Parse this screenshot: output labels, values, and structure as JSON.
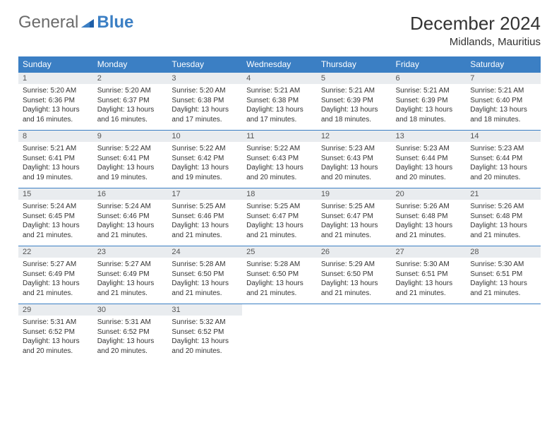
{
  "brand": {
    "part1": "General",
    "part2": "Blue"
  },
  "title": "December 2024",
  "location": "Midlands, Mauritius",
  "colors": {
    "header_bg": "#3b7fc4",
    "daynum_bg": "#e9ecef",
    "border": "#3b7fc4",
    "text": "#333333",
    "brand_gray": "#6b6b6b",
    "brand_blue": "#3b7fc4"
  },
  "day_headers": [
    "Sunday",
    "Monday",
    "Tuesday",
    "Wednesday",
    "Thursday",
    "Friday",
    "Saturday"
  ],
  "days": [
    {
      "n": 1,
      "sr": "5:20 AM",
      "ss": "6:36 PM",
      "dl": "13 hours and 16 minutes."
    },
    {
      "n": 2,
      "sr": "5:20 AM",
      "ss": "6:37 PM",
      "dl": "13 hours and 16 minutes."
    },
    {
      "n": 3,
      "sr": "5:20 AM",
      "ss": "6:38 PM",
      "dl": "13 hours and 17 minutes."
    },
    {
      "n": 4,
      "sr": "5:21 AM",
      "ss": "6:38 PM",
      "dl": "13 hours and 17 minutes."
    },
    {
      "n": 5,
      "sr": "5:21 AM",
      "ss": "6:39 PM",
      "dl": "13 hours and 18 minutes."
    },
    {
      "n": 6,
      "sr": "5:21 AM",
      "ss": "6:39 PM",
      "dl": "13 hours and 18 minutes."
    },
    {
      "n": 7,
      "sr": "5:21 AM",
      "ss": "6:40 PM",
      "dl": "13 hours and 18 minutes."
    },
    {
      "n": 8,
      "sr": "5:21 AM",
      "ss": "6:41 PM",
      "dl": "13 hours and 19 minutes."
    },
    {
      "n": 9,
      "sr": "5:22 AM",
      "ss": "6:41 PM",
      "dl": "13 hours and 19 minutes."
    },
    {
      "n": 10,
      "sr": "5:22 AM",
      "ss": "6:42 PM",
      "dl": "13 hours and 19 minutes."
    },
    {
      "n": 11,
      "sr": "5:22 AM",
      "ss": "6:43 PM",
      "dl": "13 hours and 20 minutes."
    },
    {
      "n": 12,
      "sr": "5:23 AM",
      "ss": "6:43 PM",
      "dl": "13 hours and 20 minutes."
    },
    {
      "n": 13,
      "sr": "5:23 AM",
      "ss": "6:44 PM",
      "dl": "13 hours and 20 minutes."
    },
    {
      "n": 14,
      "sr": "5:23 AM",
      "ss": "6:44 PM",
      "dl": "13 hours and 20 minutes."
    },
    {
      "n": 15,
      "sr": "5:24 AM",
      "ss": "6:45 PM",
      "dl": "13 hours and 21 minutes."
    },
    {
      "n": 16,
      "sr": "5:24 AM",
      "ss": "6:46 PM",
      "dl": "13 hours and 21 minutes."
    },
    {
      "n": 17,
      "sr": "5:25 AM",
      "ss": "6:46 PM",
      "dl": "13 hours and 21 minutes."
    },
    {
      "n": 18,
      "sr": "5:25 AM",
      "ss": "6:47 PM",
      "dl": "13 hours and 21 minutes."
    },
    {
      "n": 19,
      "sr": "5:25 AM",
      "ss": "6:47 PM",
      "dl": "13 hours and 21 minutes."
    },
    {
      "n": 20,
      "sr": "5:26 AM",
      "ss": "6:48 PM",
      "dl": "13 hours and 21 minutes."
    },
    {
      "n": 21,
      "sr": "5:26 AM",
      "ss": "6:48 PM",
      "dl": "13 hours and 21 minutes."
    },
    {
      "n": 22,
      "sr": "5:27 AM",
      "ss": "6:49 PM",
      "dl": "13 hours and 21 minutes."
    },
    {
      "n": 23,
      "sr": "5:27 AM",
      "ss": "6:49 PM",
      "dl": "13 hours and 21 minutes."
    },
    {
      "n": 24,
      "sr": "5:28 AM",
      "ss": "6:50 PM",
      "dl": "13 hours and 21 minutes."
    },
    {
      "n": 25,
      "sr": "5:28 AM",
      "ss": "6:50 PM",
      "dl": "13 hours and 21 minutes."
    },
    {
      "n": 26,
      "sr": "5:29 AM",
      "ss": "6:50 PM",
      "dl": "13 hours and 21 minutes."
    },
    {
      "n": 27,
      "sr": "5:30 AM",
      "ss": "6:51 PM",
      "dl": "13 hours and 21 minutes."
    },
    {
      "n": 28,
      "sr": "5:30 AM",
      "ss": "6:51 PM",
      "dl": "13 hours and 21 minutes."
    },
    {
      "n": 29,
      "sr": "5:31 AM",
      "ss": "6:52 PM",
      "dl": "13 hours and 20 minutes."
    },
    {
      "n": 30,
      "sr": "5:31 AM",
      "ss": "6:52 PM",
      "dl": "13 hours and 20 minutes."
    },
    {
      "n": 31,
      "sr": "5:32 AM",
      "ss": "6:52 PM",
      "dl": "13 hours and 20 minutes."
    }
  ],
  "labels": {
    "sunrise": "Sunrise:",
    "sunset": "Sunset:",
    "daylight": "Daylight:"
  },
  "layout": {
    "first_weekday": 0,
    "rows": 5,
    "cols": 7
  }
}
